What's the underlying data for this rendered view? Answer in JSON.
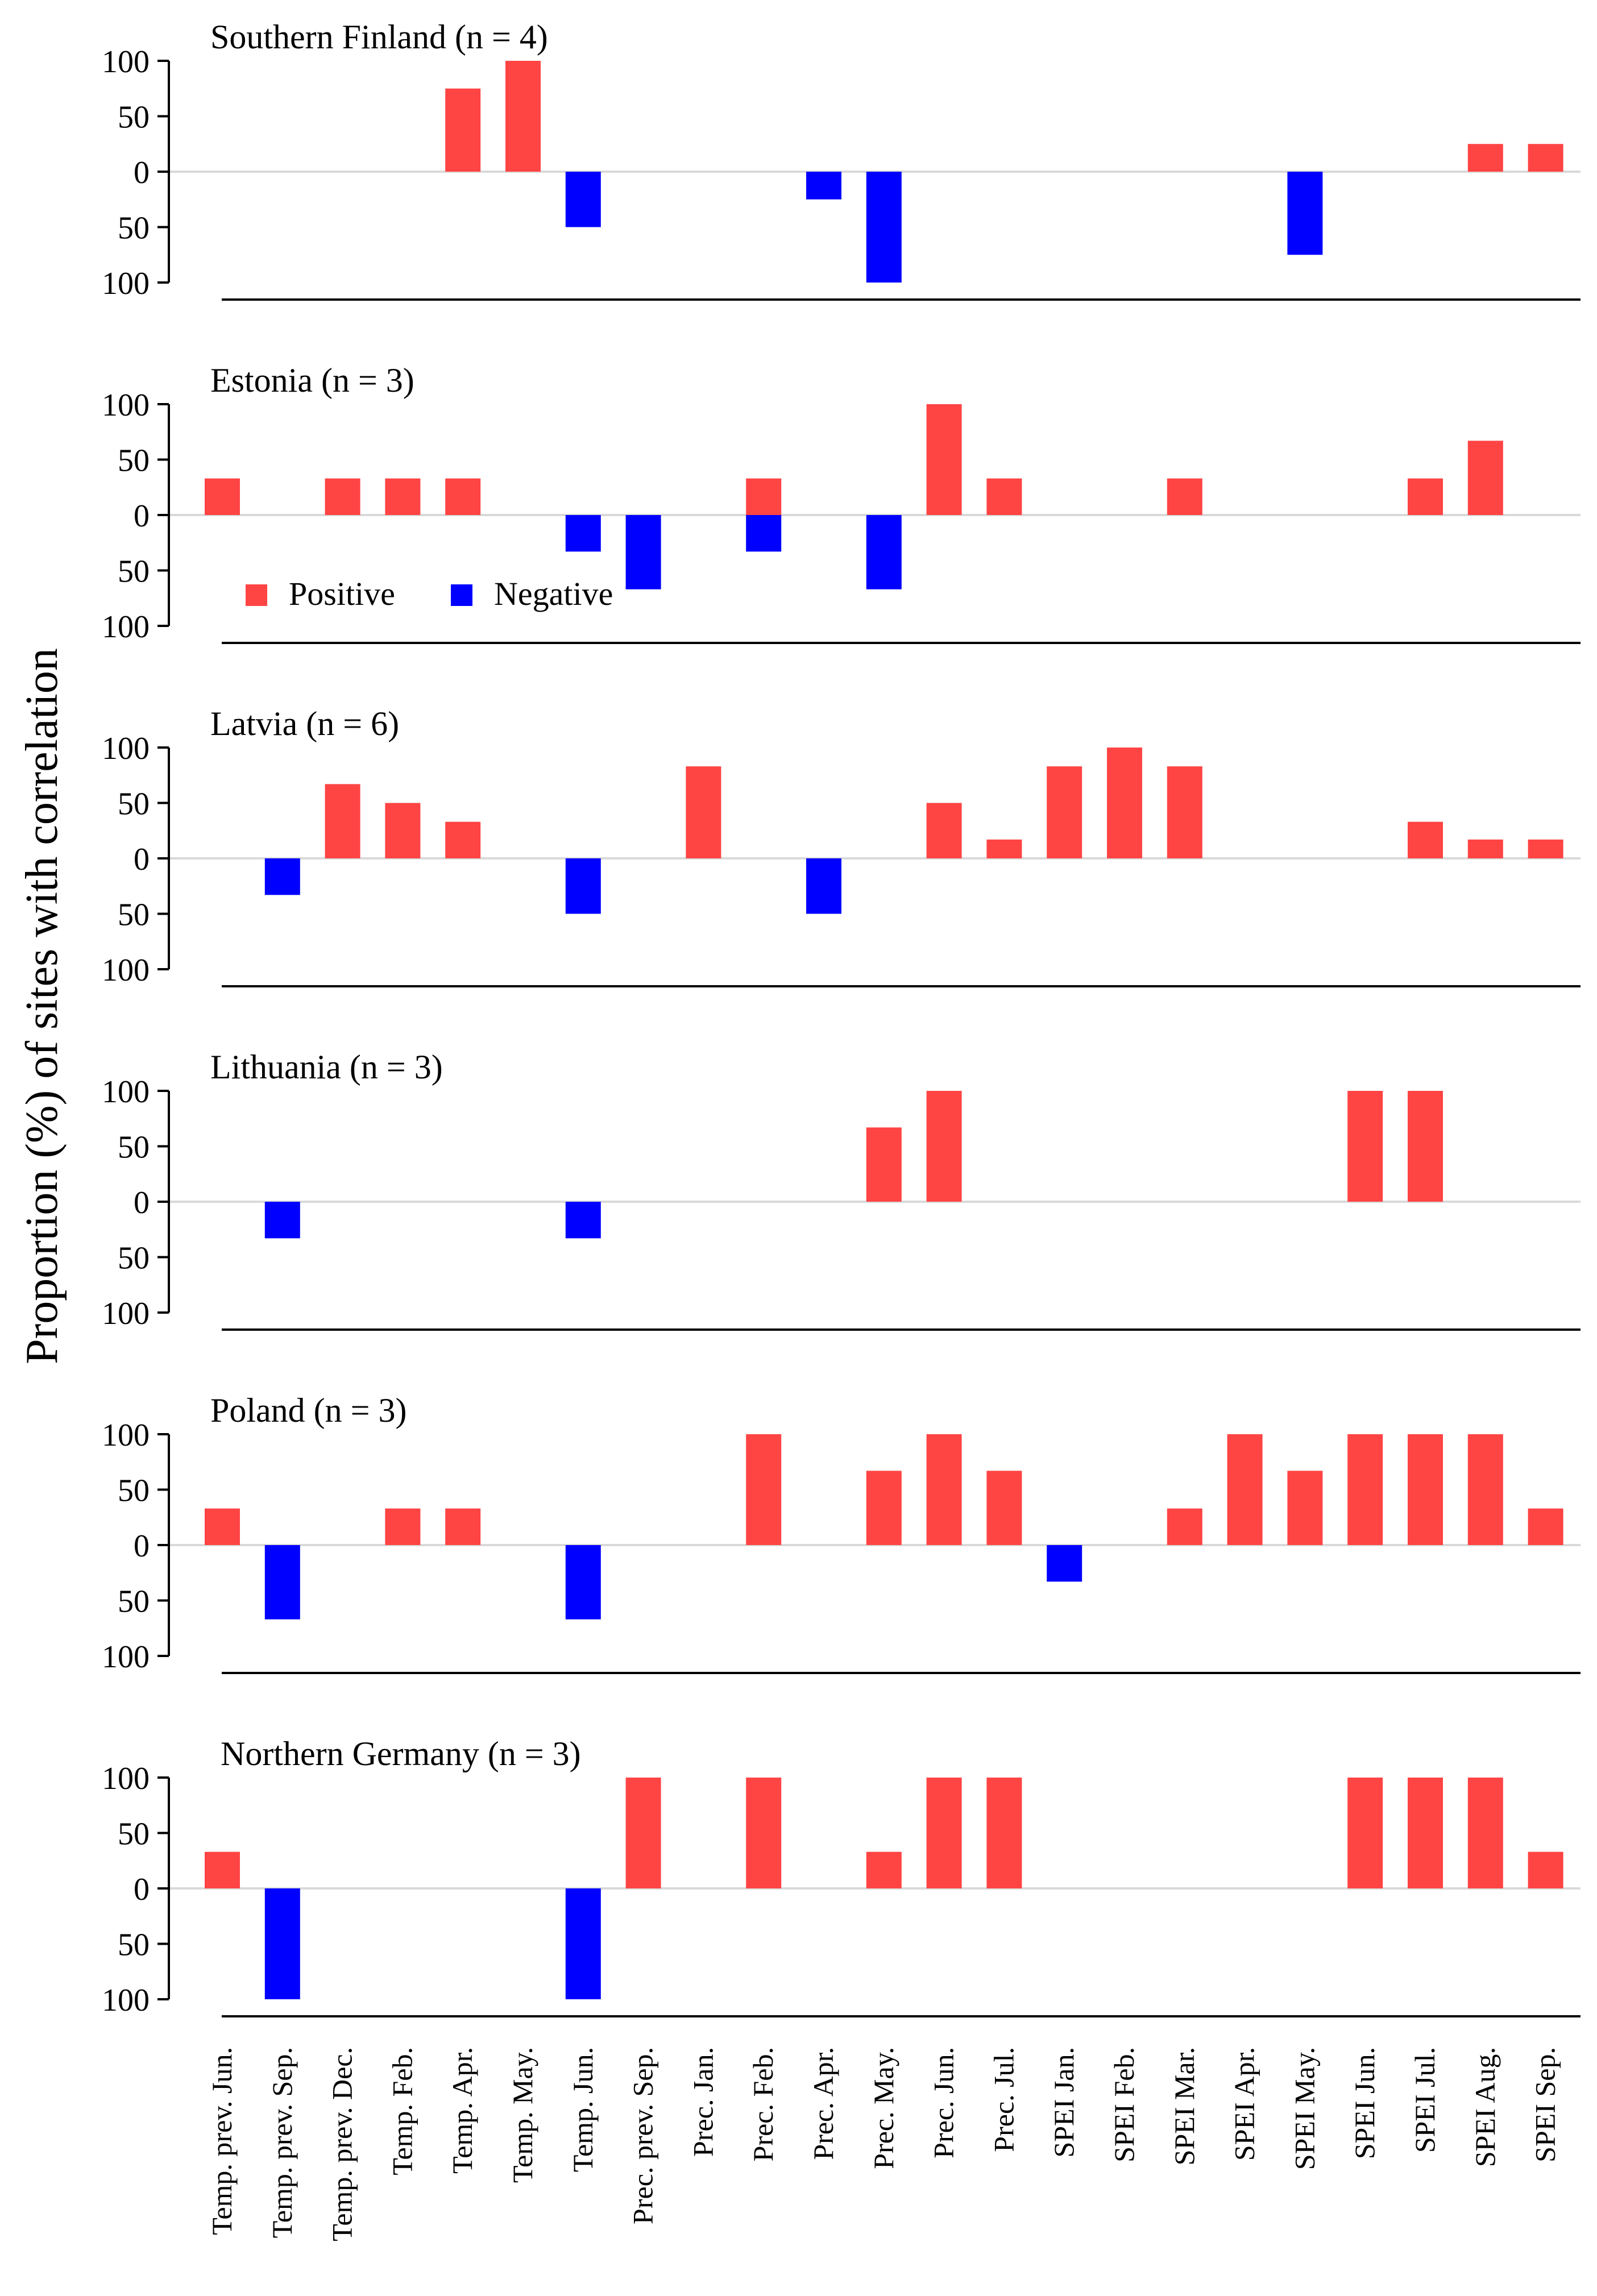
{
  "figure": {
    "ylabel": "Proportion (%) of sites with correlation",
    "legend": {
      "placement": "inside-second-panel-lower-left",
      "items": [
        {
          "label": "Positive",
          "color": "#ff4444"
        },
        {
          "label": "Negative",
          "color": "#0000ff"
        }
      ]
    },
    "colors": {
      "positive": "#ff4444",
      "negative": "#0000ff",
      "zero_line": "#d9d9d9",
      "axis": "#000000"
    }
  },
  "chart_data": {
    "type": "bar",
    "categories": [
      "Temp. prev. Jun.",
      "Temp. prev. Sep.",
      "Temp. prev. Dec.",
      "Temp. Feb.",
      "Temp. Apr.",
      "Temp. May.",
      "Temp. Jun.",
      "Prec. prev. Sep.",
      "Prec. Jan.",
      "Prec. Feb.",
      "Prec. Apr.",
      "Prec. May.",
      "Prec. Jun.",
      "Prec. Jul.",
      "SPEI Jan.",
      "SPEI Feb.",
      "SPEI Mar.",
      "SPEI Apr.",
      "SPEI May.",
      "SPEI Jun.",
      "SPEI Jul.",
      "SPEI Aug.",
      "SPEI Sep."
    ],
    "ylabel": "Proportion (%) of sites with correlation",
    "y_ticks": [
      "100",
      "50",
      "0",
      "50",
      "100"
    ],
    "ylim": [
      -100,
      100
    ],
    "panels": [
      {
        "title": "Southern Finland (n = 4)",
        "positive": [
          0,
          0,
          0,
          0,
          75,
          100,
          0,
          0,
          0,
          0,
          0,
          0,
          0,
          0,
          0,
          0,
          0,
          0,
          0,
          0,
          0,
          25,
          25
        ],
        "negative": [
          0,
          0,
          0,
          0,
          0,
          0,
          50,
          0,
          0,
          0,
          25,
          100,
          0,
          0,
          0,
          0,
          0,
          0,
          75,
          0,
          0,
          0,
          0
        ]
      },
      {
        "title": "Estonia (n = 3)",
        "positive": [
          33,
          0,
          33,
          33,
          33,
          0,
          0,
          0,
          0,
          33,
          0,
          0,
          100,
          33,
          0,
          0,
          33,
          0,
          0,
          0,
          33,
          67,
          0
        ],
        "negative": [
          0,
          0,
          0,
          0,
          0,
          0,
          33,
          67,
          0,
          33,
          0,
          67,
          0,
          0,
          0,
          0,
          0,
          0,
          0,
          0,
          0,
          0,
          0
        ]
      },
      {
        "title": "Latvia (n = 6)",
        "positive": [
          0,
          0,
          67,
          50,
          33,
          0,
          0,
          0,
          83,
          0,
          0,
          0,
          50,
          17,
          83,
          100,
          83,
          0,
          0,
          0,
          33,
          17,
          17
        ],
        "negative": [
          0,
          33,
          0,
          0,
          0,
          0,
          50,
          0,
          0,
          0,
          50,
          0,
          0,
          0,
          0,
          0,
          0,
          0,
          0,
          0,
          0,
          0,
          0
        ]
      },
      {
        "title": "Lithuania (n = 3)",
        "positive": [
          0,
          0,
          0,
          0,
          0,
          0,
          0,
          0,
          0,
          0,
          0,
          67,
          100,
          0,
          0,
          0,
          0,
          0,
          0,
          100,
          100,
          0,
          0
        ],
        "negative": [
          0,
          33,
          0,
          0,
          0,
          0,
          33,
          0,
          0,
          0,
          0,
          0,
          0,
          0,
          0,
          0,
          0,
          0,
          0,
          0,
          0,
          0,
          0
        ]
      },
      {
        "title": "Poland (n = 3)",
        "positive": [
          33,
          0,
          0,
          33,
          33,
          0,
          0,
          0,
          0,
          100,
          0,
          67,
          100,
          67,
          0,
          0,
          33,
          100,
          67,
          100,
          100,
          100,
          33
        ],
        "negative": [
          0,
          67,
          0,
          0,
          0,
          0,
          67,
          0,
          0,
          0,
          0,
          0,
          0,
          0,
          33,
          0,
          0,
          0,
          0,
          0,
          0,
          0,
          0
        ]
      },
      {
        "title": "Northern Germany (n = 3)",
        "positive": [
          33,
          0,
          0,
          0,
          0,
          0,
          0,
          100,
          0,
          100,
          0,
          33,
          100,
          100,
          0,
          0,
          0,
          0,
          0,
          100,
          100,
          100,
          33
        ],
        "negative": [
          0,
          100,
          0,
          0,
          0,
          0,
          100,
          0,
          0,
          0,
          0,
          0,
          0,
          0,
          0,
          0,
          0,
          0,
          0,
          0,
          0,
          0,
          0
        ]
      }
    ]
  }
}
